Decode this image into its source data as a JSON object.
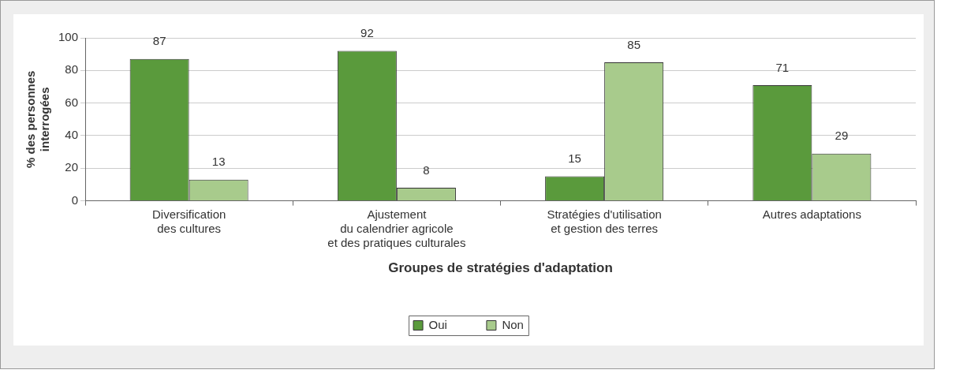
{
  "chart_data": {
    "type": "bar",
    "xlabel": "Groupes de stratégies d'adaptation",
    "ylabel": "% des personnes\ninterrogées",
    "categories": [
      "Diversification\ndes cultures",
      "Ajustement\ndu calendrier agricole\net des pratiques culturales",
      "Stratégies d'utilisation\net gestion des terres",
      "Autres adaptations"
    ],
    "series": [
      {
        "name": "Oui",
        "color": "#5a9a3c",
        "values": [
          87,
          92,
          15,
          71
        ]
      },
      {
        "name": "Non",
        "color": "#a8cb8c",
        "values": [
          13,
          8,
          85,
          29
        ]
      }
    ],
    "ylim": [
      0,
      100
    ],
    "yticks": [
      0,
      20,
      40,
      60,
      80,
      100
    ],
    "grid": "y",
    "legend": "bottom",
    "data_labels": true
  }
}
